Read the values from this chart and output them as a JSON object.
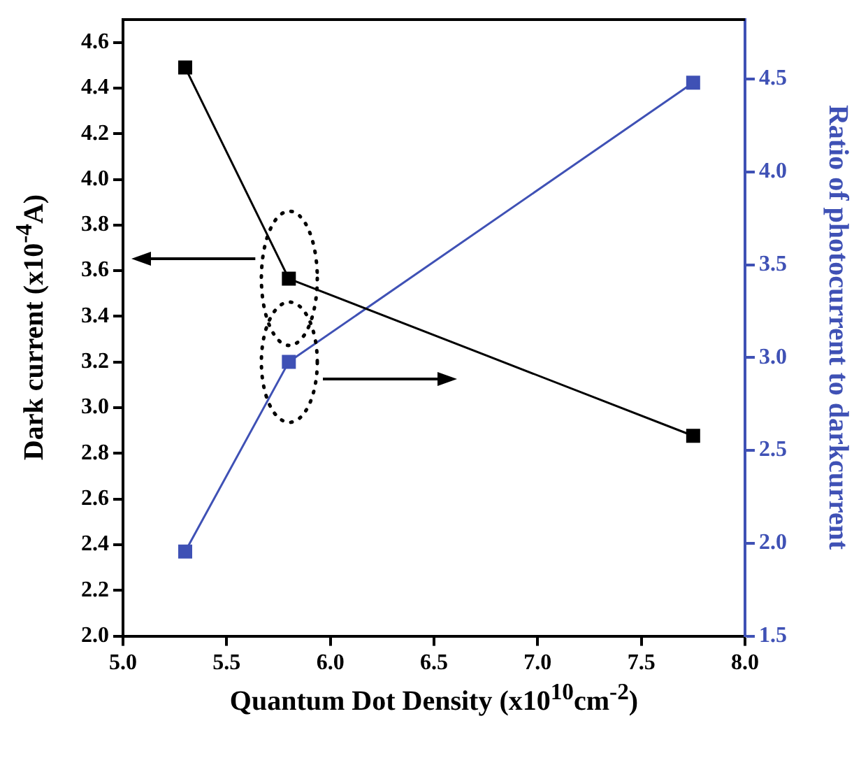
{
  "chart_data": {
    "type": "line",
    "xlabel": "Quantum Dot Density (x10$^{10}$cm$^{-2}$)",
    "ylabel": "Dark current (x10$^{-4}$A)",
    "y2label": "Ratio of photocurrent to darkcurrent",
    "x": [
      5.3,
      5.8,
      7.75
    ],
    "series": [
      {
        "color": "#000000",
        "values": [
          4.49,
          3.565,
          2.877
        ]
      },
      {
        "color": "#3f51b5",
        "values": [
          1.955,
          2.977,
          4.48
        ],
        "axis": "y2"
      }
    ],
    "xlim": [
      5.0,
      8.0
    ],
    "xticks": [
      {
        "value": 5,
        "label": "5.0"
      },
      5.5,
      {
        "value": 6,
        "label": "6.0"
      },
      6.5,
      {
        "value": 7,
        "label": "7.0"
      },
      7.5,
      {
        "value": 8,
        "label": "8.0"
      }
    ],
    "ylim": [
      2.0,
      4.7
    ],
    "yticks": [
      {
        "value": 2,
        "label": "2.0"
      },
      2.2,
      2.4,
      2.6,
      2.8,
      {
        "value": 3,
        "label": "3.0"
      },
      3.2,
      3.4,
      3.6,
      3.8,
      {
        "value": 4,
        "label": "4.0"
      },
      4.2,
      4.4,
      4.6
    ],
    "y2lim": [
      1.5,
      4.82
    ],
    "y2ticks": [
      1.5,
      {
        "value": 2,
        "label": "2.0"
      },
      2.5,
      {
        "value": 3,
        "label": "3.0"
      },
      3.5,
      {
        "value": 4,
        "label": "4.0"
      },
      4.5
    ],
    "grid": false,
    "legend": false,
    "marker": "square",
    "line_style": "solid"
  }
}
